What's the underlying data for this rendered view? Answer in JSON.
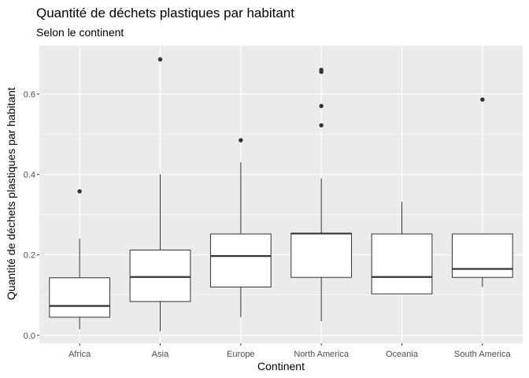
{
  "chart_data": {
    "type": "boxplot",
    "title": "Quantité de déchets plastiques par habitant",
    "subtitle": "Selon le continent",
    "xlabel": "Continent",
    "ylabel": "Quantité de déchets plastiques par habitant",
    "categories": [
      "Africa",
      "Asia",
      "Europe",
      "North America",
      "Oceania",
      "South America"
    ],
    "y_ticks": [
      0.0,
      0.2,
      0.4,
      0.6
    ],
    "y_tick_labels": [
      "0.0",
      "0.2",
      "0.4",
      "0.6"
    ],
    "ylim": [
      -0.02,
      0.72
    ],
    "grid": true,
    "panel_background": "#ebebeb",
    "grid_color": "#ffffff",
    "box_fill": "#ffffff",
    "line_color": "#333333",
    "boxes": [
      {
        "category": "Africa",
        "whisker_low": 0.015,
        "q1": 0.045,
        "median": 0.073,
        "q3": 0.143,
        "whisker_high": 0.24,
        "outliers": [
          0.358
        ]
      },
      {
        "category": "Asia",
        "whisker_low": 0.01,
        "q1": 0.084,
        "median": 0.145,
        "q3": 0.212,
        "whisker_high": 0.4,
        "outliers": [
          0.686
        ]
      },
      {
        "category": "Europe",
        "whisker_low": 0.045,
        "q1": 0.12,
        "median": 0.197,
        "q3": 0.252,
        "whisker_high": 0.43,
        "outliers": [
          0.485
        ]
      },
      {
        "category": "North America",
        "whisker_low": 0.035,
        "q1": 0.144,
        "median": 0.253,
        "q3": 0.253,
        "whisker_high": 0.39,
        "outliers": [
          0.522,
          0.57,
          0.655,
          0.66
        ]
      },
      {
        "category": "Oceania",
        "whisker_low": 0.103,
        "q1": 0.103,
        "median": 0.145,
        "q3": 0.252,
        "whisker_high": 0.332,
        "outliers": []
      },
      {
        "category": "South America",
        "whisker_low": 0.12,
        "q1": 0.144,
        "median": 0.165,
        "q3": 0.252,
        "whisker_high": 0.252,
        "outliers": [
          0.586
        ]
      }
    ]
  }
}
